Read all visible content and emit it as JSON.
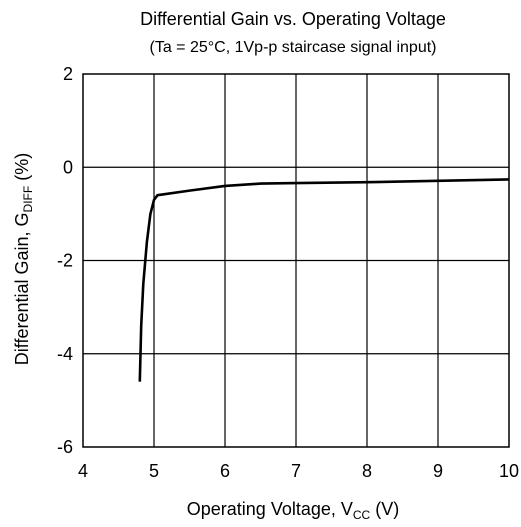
{
  "chart_data": {
    "type": "line",
    "title": "Differential Gain vs. Operating Voltage",
    "subtitle": "(Ta = 25°C, 1Vp-p staircase signal input)",
    "xlabel": {
      "main": "Operating Voltage, V",
      "subscript": "CC",
      "suffix": " (V)"
    },
    "ylabel": {
      "main": "Differential Gain, G",
      "subscript": "DIFF",
      "suffix": " (%)"
    },
    "xlim": [
      4,
      10
    ],
    "ylim": [
      -6,
      2
    ],
    "x_ticks": [
      "4",
      "5",
      "6",
      "7",
      "8",
      "9",
      "10"
    ],
    "y_ticks": [
      "2",
      "0",
      "-2",
      "-4",
      "-6"
    ],
    "grid": true,
    "series": [
      {
        "color": "#000000",
        "x": [
          4.8,
          4.82,
          4.85,
          4.9,
          4.95,
          5.0,
          5.05,
          5.5,
          6.0,
          6.5,
          7.0,
          8.0,
          9.0,
          10.0
        ],
        "y": [
          -4.6,
          -3.4,
          -2.5,
          -1.6,
          -1.0,
          -0.7,
          -0.6,
          -0.5,
          -0.4,
          -0.35,
          -0.34,
          -0.32,
          -0.29,
          -0.26
        ]
      }
    ]
  }
}
